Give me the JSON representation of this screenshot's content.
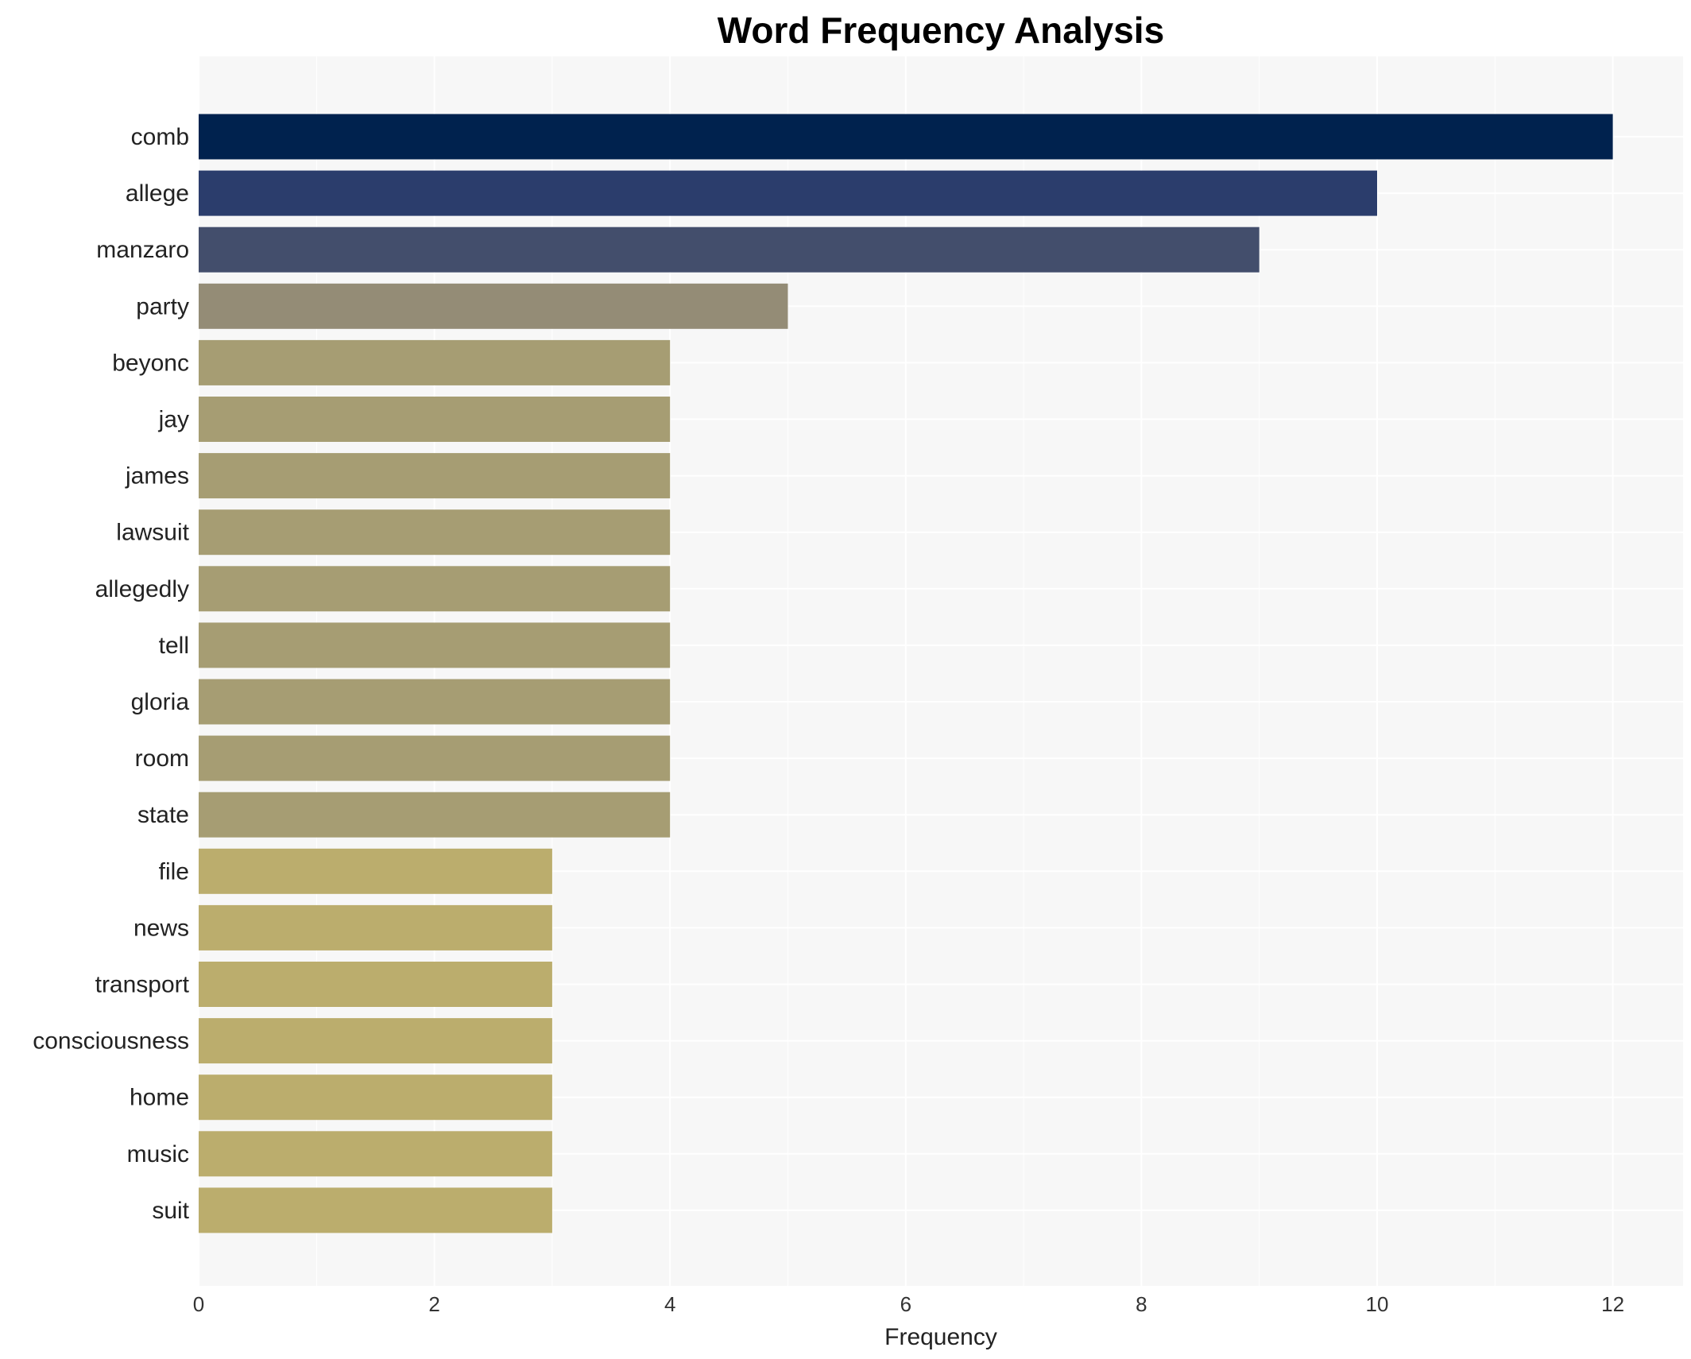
{
  "chart_data": {
    "type": "bar",
    "orientation": "horizontal",
    "title": "Word Frequency Analysis",
    "xlabel": "Frequency",
    "ylabel": "",
    "xlim": [
      0,
      12.6
    ],
    "xticks": [
      0,
      2,
      4,
      6,
      8,
      10,
      12
    ],
    "grid": true,
    "categories": [
      "comb",
      "allege",
      "manzaro",
      "party",
      "beyonc",
      "jay",
      "james",
      "lawsuit",
      "allegedly",
      "tell",
      "gloria",
      "room",
      "state",
      "file",
      "news",
      "transport",
      "consciousness",
      "home",
      "music",
      "suit"
    ],
    "values": [
      12,
      10,
      9,
      5,
      4,
      4,
      4,
      4,
      4,
      4,
      4,
      4,
      4,
      3,
      3,
      3,
      3,
      3,
      3,
      3
    ],
    "colors": [
      "#00224e",
      "#2b3d6c",
      "#434e6c",
      "#948c76",
      "#a69d73",
      "#a69d73",
      "#a69d73",
      "#a69d73",
      "#a69d73",
      "#a69d73",
      "#a69d73",
      "#a69d73",
      "#a69d73",
      "#bbad6d",
      "#bbad6d",
      "#bbad6d",
      "#bbad6d",
      "#bbad6d",
      "#bbad6d",
      "#bbad6d"
    ],
    "background": "#f7f7f7"
  }
}
